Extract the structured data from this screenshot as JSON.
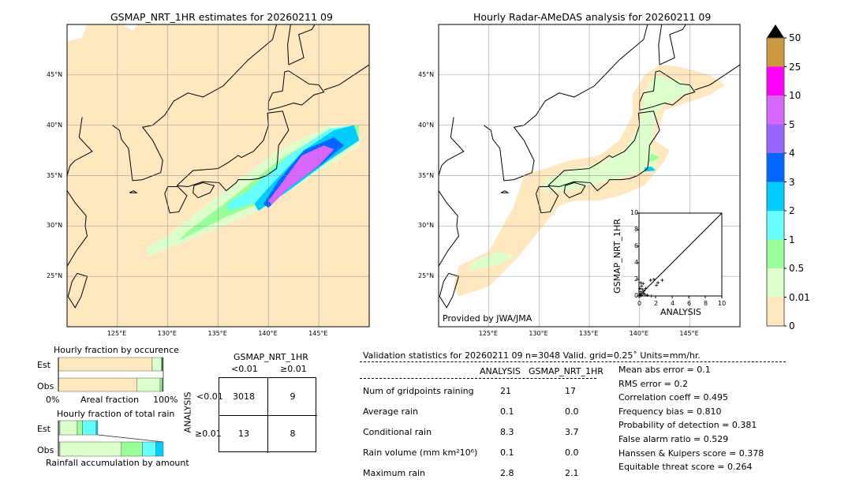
{
  "left_map": {
    "title": "GSMAP_NRT_1HR estimates for 20260211 09"
  },
  "right_map": {
    "title": "Hourly Radar-AMeDAS analysis for 20260211 09",
    "credit": "Provided by JWA/JMA"
  },
  "lat_ticks": [
    "45°N",
    "40°N",
    "35°N",
    "30°N",
    "25°N"
  ],
  "lon_ticks": [
    "125°E",
    "130°E",
    "135°E",
    "140°E",
    "145°E"
  ],
  "colorbar": {
    "labels": [
      "50",
      "25",
      "10",
      "5",
      "4",
      "3",
      "2",
      "1",
      "0.5",
      "0.01",
      "0"
    ],
    "colors": [
      "#cc9940",
      "#ff00ff",
      "#d966ff",
      "#9966ff",
      "#0066ff",
      "#00ccff",
      "#66ffff",
      "#99ff99",
      "#ddffcc",
      "#ffe8c0"
    ],
    "extend_color": "#000000"
  },
  "chart_data": {
    "type": "scatter",
    "xlabel": "ANALYSIS",
    "ylabel": "GSMAP_NRT_1HR",
    "xlim": [
      0,
      10
    ],
    "ylim": [
      0,
      10
    ],
    "ticks": [
      "0",
      "2",
      "4",
      "6",
      "8",
      "10"
    ],
    "points": [
      [
        0.1,
        0.2
      ],
      [
        0.2,
        0.5
      ],
      [
        0.3,
        1.2
      ],
      [
        0.4,
        0.8
      ],
      [
        0.5,
        1.5
      ],
      [
        0.2,
        1.6
      ],
      [
        0.6,
        0.6
      ],
      [
        0.8,
        0.9
      ],
      [
        0.3,
        0.1
      ],
      [
        0.1,
        0.9
      ],
      [
        1.4,
        1.9
      ],
      [
        1.8,
        2.0
      ],
      [
        2.1,
        1.3
      ],
      [
        2.3,
        1.6
      ],
      [
        2.8,
        1.9
      ],
      [
        0.7,
        0.2
      ],
      [
        1.0,
        0.1
      ],
      [
        1.5,
        0.0
      ],
      [
        0.5,
        0.3
      ],
      [
        0.2,
        0.0
      ]
    ]
  },
  "occurrence": {
    "title": "Hourly fraction by occurence",
    "est_label": "Est",
    "obs_label": "Obs",
    "xlabel": "Areal fraction",
    "x_min": "0%",
    "x_max": "100%",
    "est": [
      {
        "frac": 0.894,
        "color": "#ffe8c0"
      },
      {
        "frac": 0.09,
        "color": "#ddffcc"
      },
      {
        "frac": 0.016,
        "color": "#336633"
      }
    ],
    "obs": [
      {
        "frac": 0.75,
        "color": "#ffe8c0"
      },
      {
        "frac": 0.22,
        "color": "#ddffcc"
      },
      {
        "frac": 0.02,
        "color": "#99ff99"
      },
      {
        "frac": 0.01,
        "color": "#336633"
      }
    ]
  },
  "rain_fraction": {
    "title": "Hourly fraction of total rain",
    "est_label": "Est",
    "obs_label": "Obs",
    "xlabel": "Rainfall accumulation by amount",
    "est": [
      {
        "frac": 0.015,
        "color": "#cccccc"
      },
      {
        "frac": 0.165,
        "color": "#ddffcc"
      },
      {
        "frac": 0.05,
        "color": "#99ff99"
      },
      {
        "frac": 0.13,
        "color": "#66ffff"
      },
      {
        "frac": 0.015,
        "color": "#00ccff"
      }
    ],
    "obs": [
      {
        "frac": 0.015,
        "color": "#cccccc"
      },
      {
        "frac": 0.585,
        "color": "#ddffcc"
      },
      {
        "frac": 0.2,
        "color": "#99ff99"
      },
      {
        "frac": 0.13,
        "color": "#66ffff"
      },
      {
        "frac": 0.07,
        "color": "#00ccff"
      }
    ]
  },
  "contingency": {
    "title": "GSMAP_NRT_1HR",
    "col_labels": [
      "<0.01",
      "≥0.01"
    ],
    "row_title": "ANALYSIS",
    "row_labels": [
      "<0.01",
      "≥0.01"
    ],
    "values": [
      [
        "3018",
        "9"
      ],
      [
        "13",
        "8"
      ]
    ]
  },
  "stats": {
    "header": "Validation statistics for 20260211 09  n=3048 Valid. grid=0.25˚ Units=mm/hr.",
    "col_analysis": "ANALYSIS",
    "col_gsmap": "GSMAP_NRT_1HR",
    "rows": [
      {
        "label": "Num of gridpoints raining",
        "a": "21",
        "g": "17"
      },
      {
        "label": "Average rain",
        "a": "0.1",
        "g": "0.0"
      },
      {
        "label": "Conditional rain",
        "a": "8.3",
        "g": "3.7"
      },
      {
        "label": "Rain volume (mm km²10⁶)",
        "a": "0.1",
        "g": "0.0"
      },
      {
        "label": "Maximum rain",
        "a": "2.8",
        "g": "2.1"
      }
    ],
    "scores": [
      "Mean abs error =    0.1",
      "RMS error =    0.2",
      "Correlation coeff =  0.495",
      "Frequency bias =  0.810",
      "Probability of detection =  0.381",
      "False alarm ratio =  0.529",
      "Hanssen & Kuipers score =  0.378",
      "Equitable threat score =  0.264"
    ]
  }
}
